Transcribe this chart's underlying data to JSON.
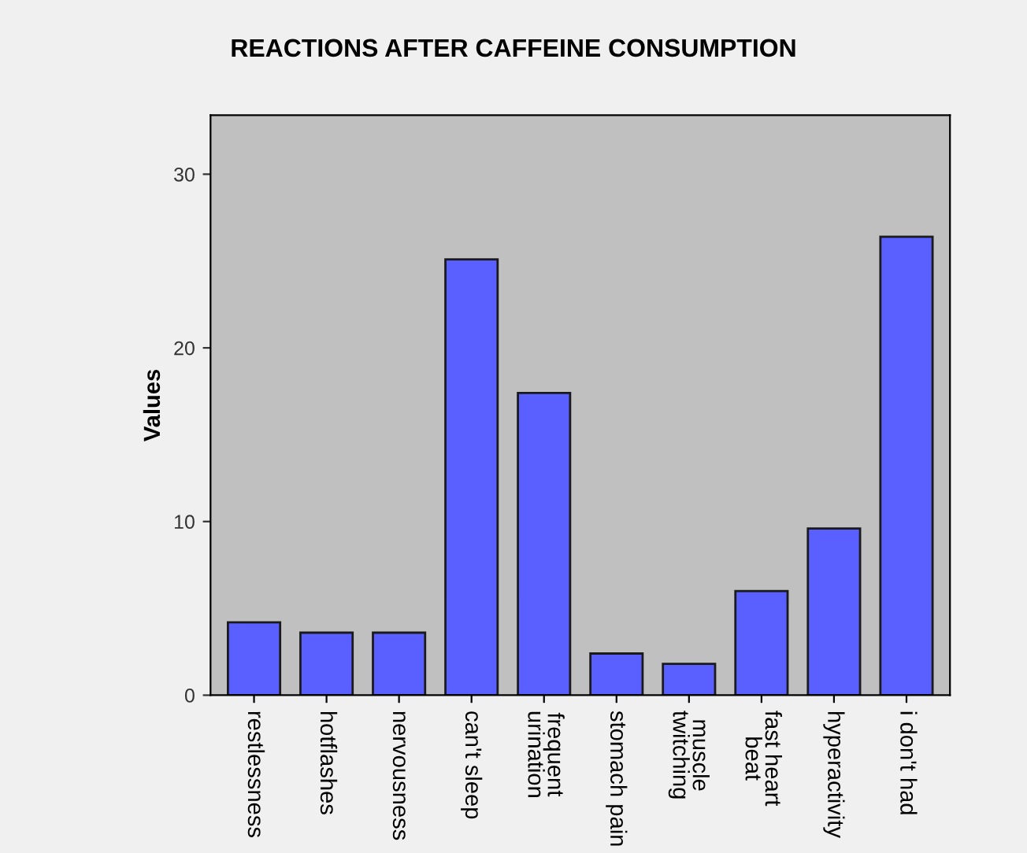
{
  "chart_data": {
    "type": "bar",
    "title": "REACTIONS AFTER CAFFEINE CONSUMPTION",
    "ylabel": "Values",
    "categories": [
      "restlessness",
      "hotflashes",
      "nervousness",
      "can't sleep",
      "frequent\nurination",
      "stomach pain",
      "muscle\ntwitching",
      "fast heart\nbeat",
      "hyperactivity",
      "i don't had"
    ],
    "values": [
      4.2,
      3.6,
      3.6,
      25.1,
      17.4,
      2.4,
      1.8,
      6.0,
      9.6,
      26.4
    ],
    "color": "#5a5fff",
    "ylim": [
      0,
      33.4
    ],
    "yticks": [
      0,
      10,
      20,
      30
    ],
    "grid": false
  }
}
